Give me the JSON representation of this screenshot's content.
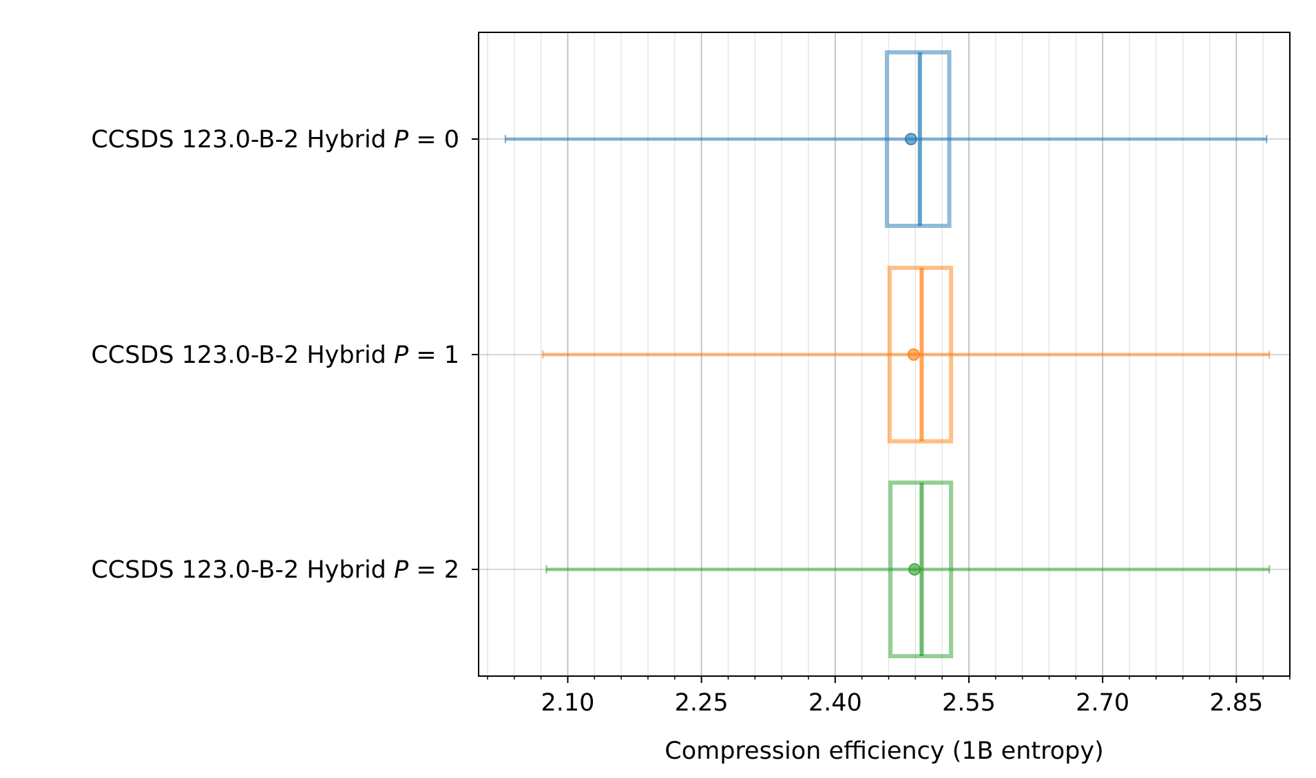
{
  "chart_data": {
    "type": "boxplot",
    "orientation": "horizontal",
    "xlabel": "Compression efficiency (1B entropy)",
    "ylabel": "",
    "xlim": [
      2.0,
      2.91
    ],
    "x_ticks": [
      "2.10",
      "2.25",
      "2.40",
      "2.55",
      "2.70",
      "2.85"
    ],
    "x_minor_step": 0.03,
    "grid": true,
    "categories": [
      "CCSDS 123.0-B-2 Hybrid P = 0",
      "CCSDS 123.0-B-2 Hybrid P = 1",
      "CCSDS 123.0-B-2 Hybrid P = 2"
    ],
    "series": [
      {
        "label_prefix": "CCSDS 123.0-B-2 Hybrid ",
        "label_var": "P",
        "label_suffix": " = 0",
        "min": 2.03,
        "q1": 2.458,
        "median": 2.495,
        "mean": 2.485,
        "q3": 2.528,
        "max": 2.884,
        "color": "#1f77b4"
      },
      {
        "label_prefix": "CCSDS 123.0-B-2 Hybrid ",
        "label_var": "P",
        "label_suffix": " = 1",
        "min": 2.072,
        "q1": 2.461,
        "median": 2.497,
        "mean": 2.488,
        "q3": 2.53,
        "max": 2.887,
        "color": "#ff7f0e"
      },
      {
        "label_prefix": "CCSDS 123.0-B-2 Hybrid ",
        "label_var": "P",
        "label_suffix": " = 2",
        "min": 2.076,
        "q1": 2.462,
        "median": 2.497,
        "mean": 2.489,
        "q3": 2.53,
        "max": 2.887,
        "color": "#2ca02c"
      }
    ]
  }
}
